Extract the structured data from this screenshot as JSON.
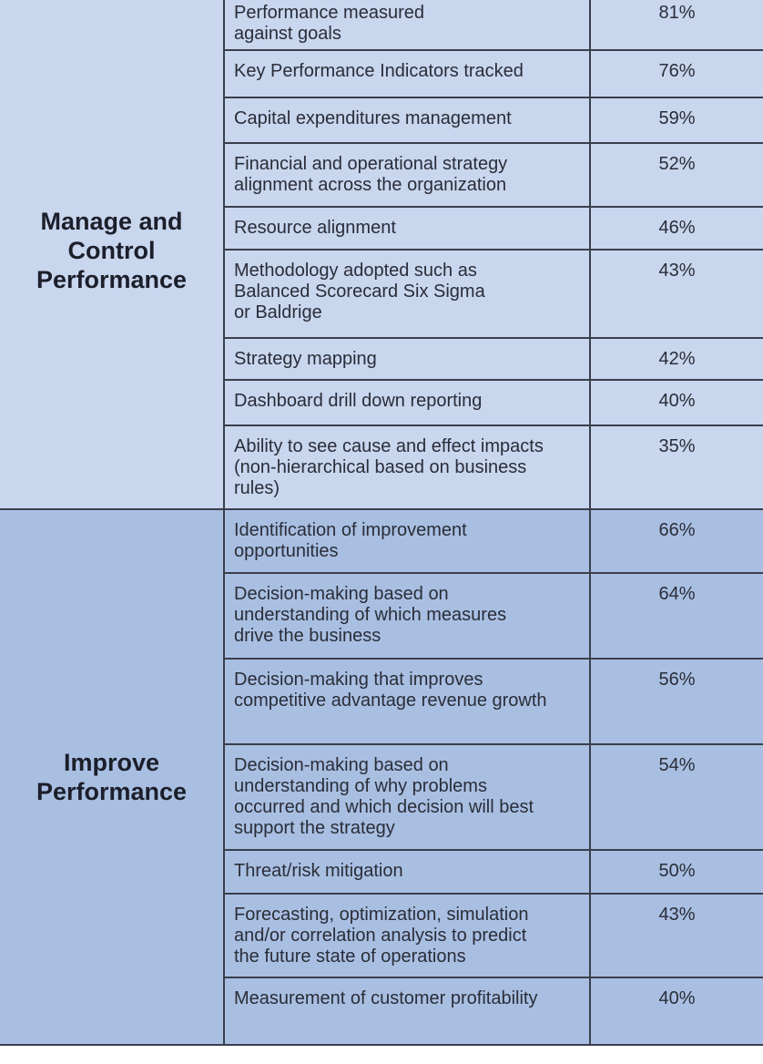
{
  "groups": [
    {
      "title_lines": [
        "Manage and",
        "Control",
        "Performance"
      ],
      "rows": [
        {
          "label": "Performance measured\nagainst goals",
          "value": "81%"
        },
        {
          "label": "Key Performance Indicators tracked",
          "value": "76%"
        },
        {
          "label": "Capital expenditures management",
          "value": "59%"
        },
        {
          "label": "Financial and operational strategy\nalignment across the organization",
          "value": "52%"
        },
        {
          "label": "Resource alignment",
          "value": "46%"
        },
        {
          "label": "Methodology adopted such as\nBalanced Scorecard Six Sigma\nor Baldrige",
          "value": "43%"
        },
        {
          "label": "Strategy mapping",
          "value": "42%"
        },
        {
          "label": "Dashboard drill down reporting",
          "value": "40%"
        },
        {
          "label": "Ability to see cause and effect impacts\n(non-hierarchical based on business\nrules)",
          "value": "35%"
        }
      ]
    },
    {
      "title_lines": [
        "Improve",
        "Performance"
      ],
      "rows": [
        {
          "label": "Identification of improvement\nopportunities",
          "value": "66%"
        },
        {
          "label": "Decision-making based on\nunderstanding of which measures\ndrive the business",
          "value": "64%"
        },
        {
          "label": "Decision-making that improves\ncompetitive advantage revenue growth",
          "value": "56%"
        },
        {
          "label": "Decision-making based on\nunderstanding of why problems\noccurred and which decision will best\nsupport the strategy",
          "value": "54%"
        },
        {
          "label": "Threat/risk mitigation",
          "value": "50%"
        },
        {
          "label": "Forecasting, optimization, simulation\nand/or correlation analysis to predict\nthe future state of operations",
          "value": "43%"
        },
        {
          "label": "Measurement of customer profitability",
          "value": "40%"
        }
      ]
    }
  ]
}
